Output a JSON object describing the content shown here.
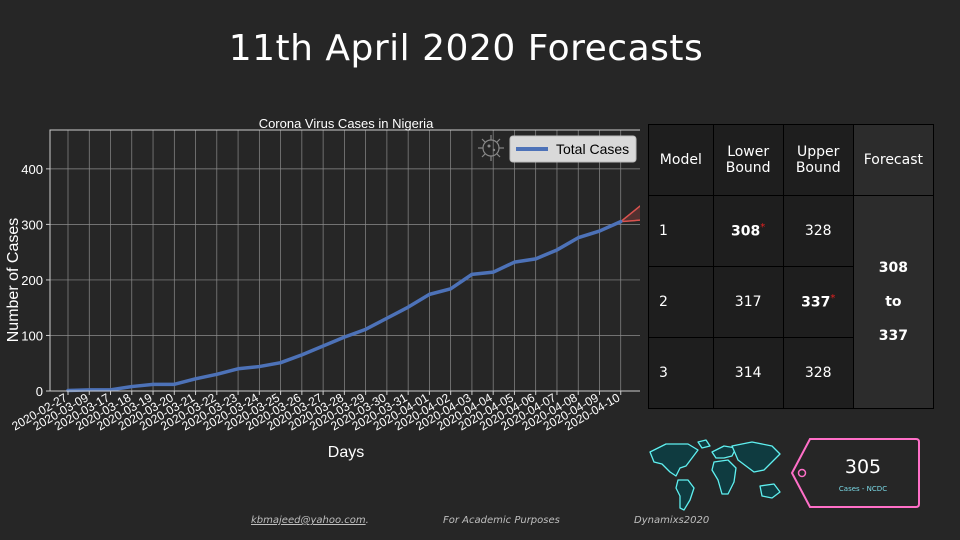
{
  "slide": {
    "title": "11th April 2020 Forecasts"
  },
  "chart_data": {
    "type": "line",
    "title": "Corona Virus Cases in Nigeria",
    "xlabel": "Days",
    "ylabel": "Number of Cases",
    "ylim": [
      0,
      470
    ],
    "yticks": [
      0,
      100,
      200,
      300,
      400
    ],
    "grid": true,
    "legend_position": "top-right",
    "categories": [
      "2020-02-27",
      "2020-03-09",
      "2020-03-17",
      "2020-03-18",
      "2020-03-19",
      "2020-03-20",
      "2020-03-21",
      "2020-03-22",
      "2020-03-23",
      "2020-03-24",
      "2020-03-25",
      "2020-03-26",
      "2020-03-27",
      "2020-03-28",
      "2020-03-29",
      "2020-03-30",
      "2020-03-31",
      "2020-04-01",
      "2020-04-02",
      "2020-04-03",
      "2020-04-04",
      "2020-04-05",
      "2020-04-06",
      "2020-04-07",
      "2020-04-08",
      "2020-04-09",
      "2020-04-10"
    ],
    "tick_labels": [
      "2020-02-27",
      "2020-03-09",
      "2020-03-17",
      "2020-03-18",
      "2020-03-19",
      "2020-03-20",
      "2020-03-21",
      "2020-03-22",
      "2020-03-23",
      "2020-03-24",
      "2020-03-25",
      "2020-03-26",
      "2020-03-27",
      "2020-03-28",
      "2020-03-29",
      "2020-03-30",
      "2020-03-31",
      "2020-04-01",
      "2020-04-02",
      "2020-04-03",
      "2020-04-04",
      "2020-04-05",
      "2020-04-06",
      "2020-04-07",
      "2020-04-08",
      "2020-04-09",
      "2020-04-10"
    ],
    "series": [
      {
        "name": "Total Cases",
        "color": "#4d72b8",
        "values": [
          1,
          2,
          2,
          8,
          12,
          12,
          22,
          30,
          40,
          44,
          51,
          65,
          81,
          97,
          111,
          131,
          151,
          174,
          184,
          210,
          214,
          232,
          238,
          254,
          276,
          288,
          305
        ]
      }
    ],
    "forecast_fan": {
      "color": "#d9534f",
      "x_index": 26,
      "from": 305,
      "to_low": 308,
      "to_high": 337
    }
  },
  "table": {
    "headers": [
      "Model",
      "Lower Bound",
      "Upper Bound",
      "Forecast"
    ],
    "rows": [
      {
        "model": "1",
        "lower": "308",
        "upper": "328"
      },
      {
        "model": "2",
        "lower": "317",
        "upper": "337"
      },
      {
        "model": "3",
        "lower": "314",
        "upper": "328"
      }
    ],
    "star": "*",
    "forecast_from": "308",
    "forecast_word": "to",
    "forecast_to": "337"
  },
  "card": {
    "value": "305",
    "caption": "Cases - NCDC",
    "icons": [
      "world-map-icon",
      "price-tag-icon",
      "virus-icon"
    ],
    "colors": {
      "map": "#5ff0f0",
      "tag": "#ff6fc8"
    }
  },
  "footer": {
    "email": "kbmajeed@yahoo.com",
    "email_suffix": ".",
    "purpose": "For Academic Purposes",
    "brand": "Dynamixs2020"
  }
}
